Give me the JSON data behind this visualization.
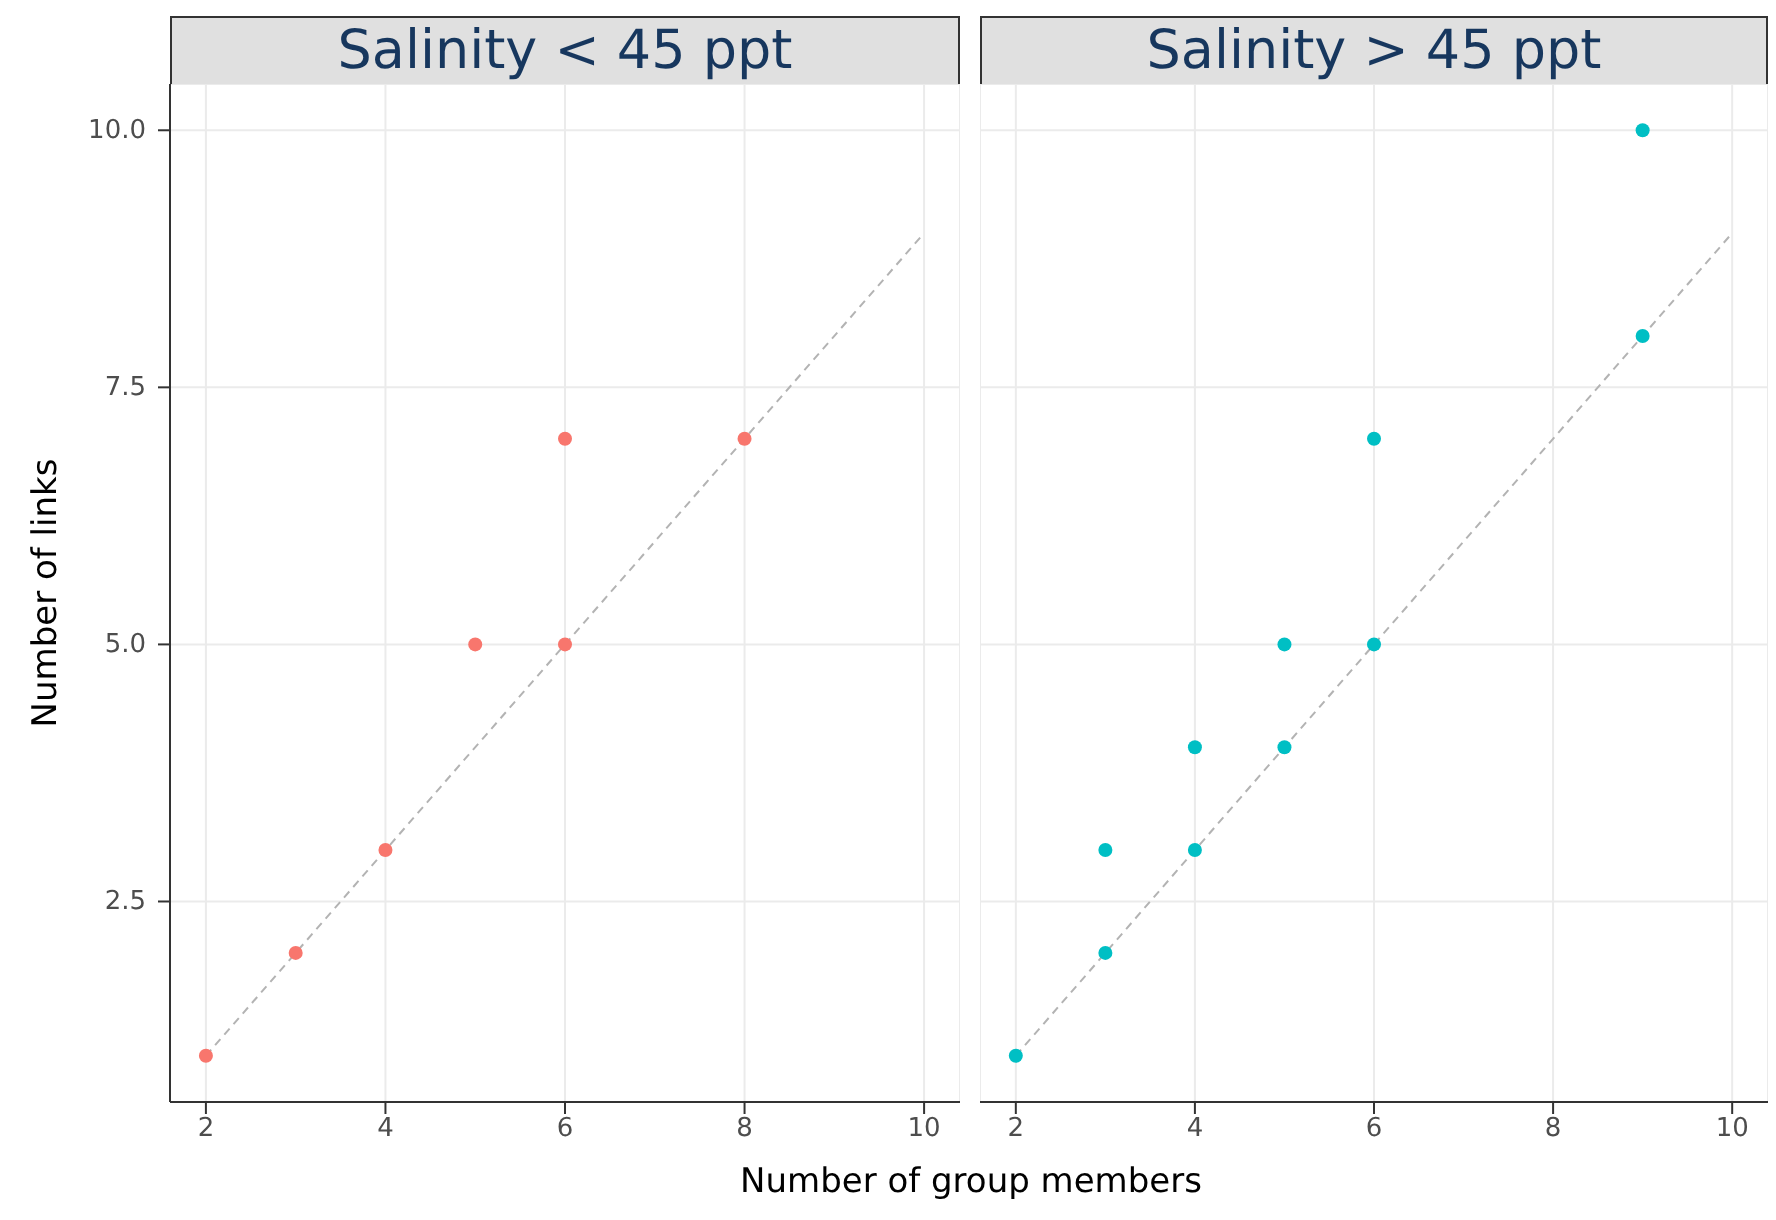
{
  "chart_data": [
    {
      "type": "scatter",
      "title": "Salinity < 45 ppt",
      "xlabel": "Number of group members",
      "ylabel": "Number of links",
      "xlim": [
        1.6,
        10.4
      ],
      "ylim": [
        0.55,
        10.45
      ],
      "xticks": [
        2,
        4,
        6,
        8,
        10
      ],
      "yticks": [
        {
          "value": 2.5,
          "label": "2.5"
        },
        {
          "value": 5,
          "label": "5.0"
        },
        {
          "value": 7.5,
          "label": "7.5"
        },
        {
          "value": 10,
          "label": "10.0"
        }
      ],
      "grid": true,
      "marker": "circle",
      "series": [
        {
          "type": "scatter",
          "color": "#f8766d",
          "x": [
            2,
            3,
            4,
            5,
            6,
            6,
            8
          ],
          "values": [
            1,
            2,
            3,
            5,
            5,
            7,
            7
          ]
        },
        {
          "type": "line",
          "color": "#b3b3b3",
          "line_style": "dashed",
          "marker": "none",
          "x": [
            2,
            10
          ],
          "values": [
            1,
            9
          ]
        }
      ]
    },
    {
      "type": "scatter",
      "title": "Salinity > 45 ppt",
      "xlim": [
        1.6,
        10.4
      ],
      "ylim": [
        0.55,
        10.45
      ],
      "xticks": [
        2,
        4,
        6,
        8,
        10
      ],
      "yticks": [
        {
          "value": 2.5,
          "label": null
        },
        {
          "value": 5,
          "label": null
        },
        {
          "value": 7.5,
          "label": null
        },
        {
          "value": 10,
          "label": null
        }
      ],
      "tick_labels": "x",
      "grid": true,
      "marker": "circle",
      "series": [
        {
          "type": "scatter",
          "color": "#00bfc4",
          "x": [
            2,
            3,
            3,
            4,
            4,
            5,
            5,
            6,
            6,
            9,
            9
          ],
          "values": [
            1,
            2,
            3,
            3,
            4,
            4,
            5,
            5,
            7,
            8,
            10
          ]
        },
        {
          "type": "line",
          "color": "#b3b3b3",
          "line_style": "dashed",
          "marker": "none",
          "x": [
            2,
            10
          ],
          "values": [
            1,
            9
          ]
        }
      ]
    }
  ]
}
